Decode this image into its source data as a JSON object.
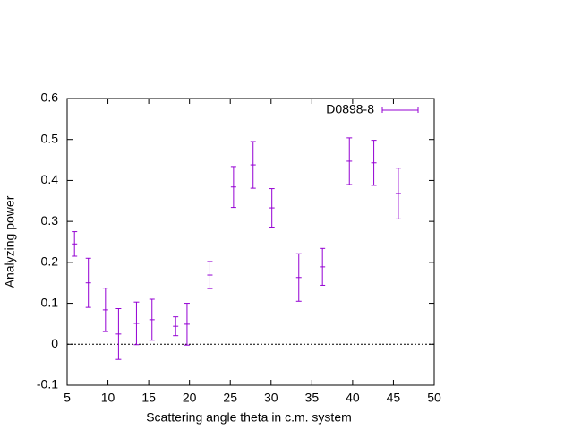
{
  "chart_data": {
    "type": "errorbar",
    "xlabel": "Scattering angle theta in c.m. system",
    "ylabel": "Analyzing power",
    "series": [
      {
        "name": "D0898-8",
        "color": "#9400d3",
        "x": [
          5.9,
          7.6,
          9.7,
          11.3,
          13.5,
          15.4,
          18.3,
          19.7,
          22.5,
          25.4,
          27.8,
          30.1,
          33.4,
          36.3,
          39.6,
          42.6,
          45.6
        ],
        "values": [
          0.245,
          0.15,
          0.084,
          0.025,
          0.051,
          0.06,
          0.044,
          0.049,
          0.169,
          0.384,
          0.438,
          0.333,
          0.163,
          0.189,
          0.447,
          0.443,
          0.368
        ],
        "yerr": [
          0.03,
          0.06,
          0.053,
          0.062,
          0.052,
          0.05,
          0.023,
          0.051,
          0.033,
          0.05,
          0.057,
          0.047,
          0.058,
          0.045,
          0.057,
          0.055,
          0.062
        ]
      }
    ],
    "xlim": [
      5,
      50
    ],
    "xticks": [
      5,
      10,
      15,
      20,
      25,
      30,
      35,
      40,
      45,
      50
    ],
    "ylim": [
      -0.1,
      0.6
    ],
    "yticks": [
      -0.1,
      0,
      0.1,
      0.2,
      0.3,
      0.4,
      0.5,
      0.6
    ],
    "zero_axis": true,
    "legend": "top-right"
  }
}
